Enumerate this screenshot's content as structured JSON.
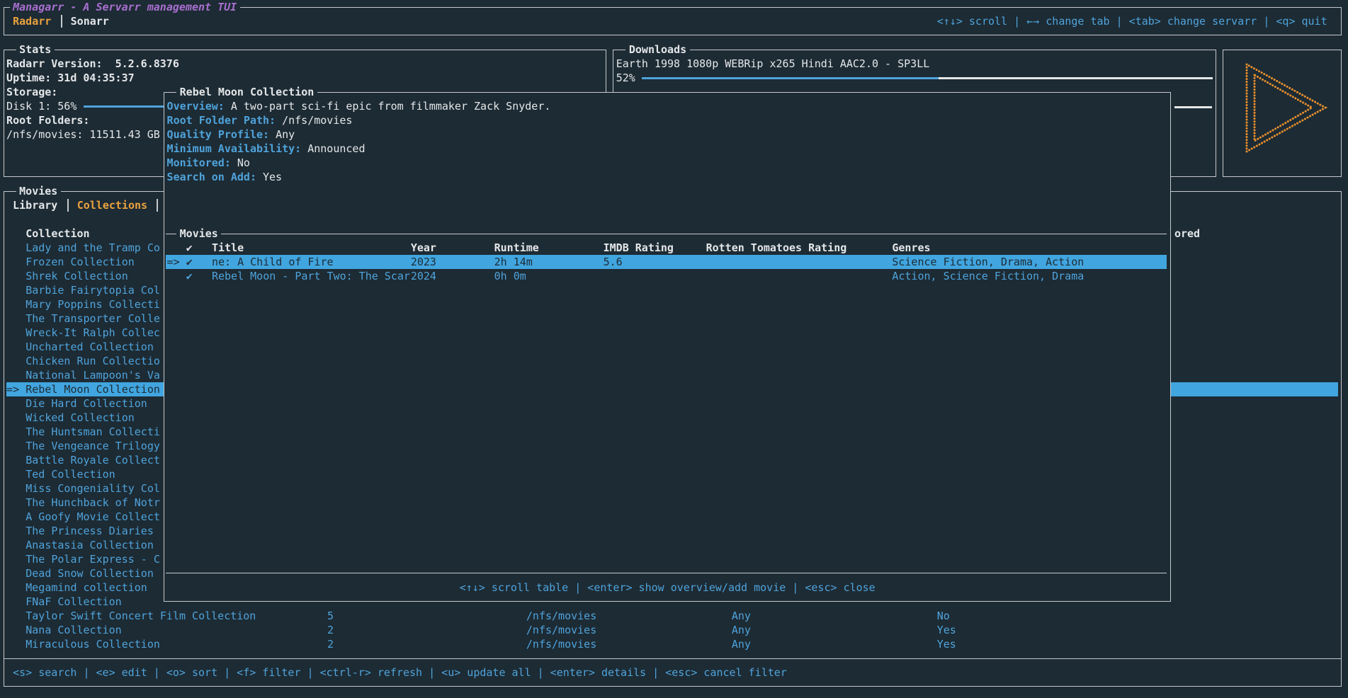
{
  "header": {
    "title": "Managarr - A Servarr management TUI",
    "tabs": [
      "Radarr",
      "Sonarr"
    ],
    "active_tab": 0,
    "help": "<↑↓> scroll | ←→ change tab | <tab> change servarr | <q> quit"
  },
  "stats": {
    "title": "Stats",
    "version_label": "Radarr Version:",
    "version": "5.2.6.8376",
    "uptime_label": "Uptime:",
    "uptime": "31d 04:35:37",
    "storage_label": "Storage:",
    "disk_label": "Disk 1:",
    "disk_percent_label": "56%",
    "disk_percent": 56,
    "root_folders_label": "Root Folders:",
    "root_folders": "/nfs/movies: 11511.43 GB"
  },
  "downloads": {
    "title": "Downloads",
    "items": [
      {
        "name": "Earth 1998 1080p WEBRip x265 Hindi AAC2.0 - SP3LL",
        "progress_label": "52%",
        "progress": 52
      }
    ]
  },
  "movies": {
    "title": "Movies",
    "tabs": [
      "Library",
      "Collections"
    ],
    "active_tab": 1,
    "columns": [
      "Collection",
      "ored"
    ],
    "cursor": "=>",
    "rows": [
      {
        "name": "Lady and the Tramp Co"
      },
      {
        "name": "Frozen Collection"
      },
      {
        "name": "Shrek Collection"
      },
      {
        "name": "Barbie Fairytopia Col"
      },
      {
        "name": "Mary Poppins Collecti"
      },
      {
        "name": "The Transporter Colle"
      },
      {
        "name": "Wreck-It Ralph Collec"
      },
      {
        "name": "Uncharted Collection"
      },
      {
        "name": "Chicken Run Collectio"
      },
      {
        "name": "National Lampoon's Va"
      },
      {
        "name": "Rebel Moon Collection",
        "selected": true
      },
      {
        "name": "Die Hard Collection"
      },
      {
        "name": "Wicked Collection"
      },
      {
        "name": "The Huntsman Collecti"
      },
      {
        "name": "The Vengeance Trilogy"
      },
      {
        "name": "Battle Royale Collect"
      },
      {
        "name": "Ted Collection"
      },
      {
        "name": "Miss Congeniality Col"
      },
      {
        "name": "The Hunchback of Notr"
      },
      {
        "name": "A Goofy Movie Collect"
      },
      {
        "name": "The Princess Diaries"
      },
      {
        "name": "Anastasia Collection"
      },
      {
        "name": "The Polar Express - C"
      },
      {
        "name": "Dead Snow Collection"
      },
      {
        "name": "Megamind collection"
      },
      {
        "name": "FNaF Collection"
      },
      {
        "name": "Taylor Swift Concert Film Collection",
        "movies": 5,
        "root_folder": "/nfs/movies",
        "quality_profile": "Any",
        "search_on_add": "No"
      },
      {
        "name": "Nana Collection",
        "movies": 2,
        "root_folder": "/nfs/movies",
        "quality_profile": "Any",
        "search_on_add": "Yes"
      },
      {
        "name": "Miraculous Collection",
        "movies": 2,
        "root_folder": "/nfs/movies",
        "quality_profile": "Any",
        "search_on_add": "Yes"
      }
    ],
    "help": "<s> search | <e> edit | <o> sort | <f> filter | <ctrl-r> refresh | <u> update all | <enter> details | <esc> cancel filter"
  },
  "popup": {
    "title": "Rebel Moon Collection",
    "fields": [
      {
        "label": "Overview:",
        "value": "A two-part sci-fi epic from filmmaker Zack Snyder."
      },
      {
        "label": "Root Folder Path:",
        "value": "/nfs/movies"
      },
      {
        "label": "Quality Profile:",
        "value": "Any"
      },
      {
        "label": "Minimum Availability:",
        "value": "Announced"
      },
      {
        "label": "Monitored:",
        "value": "No"
      },
      {
        "label": "Search on Add:",
        "value": "Yes"
      }
    ],
    "table": {
      "title": "Movies",
      "cursor": "=>",
      "columns": [
        "✔",
        "Title",
        "Year",
        "Runtime",
        "IMDB Rating",
        "Rotten Tomatoes Rating",
        "Genres"
      ],
      "rows": [
        {
          "monitored": "✔",
          "title": "ne: A Child of Fire",
          "year": 2023,
          "runtime": "2h 14m",
          "imdb_rating": 5.6,
          "genres": "Science Fiction, Drama, Action",
          "selected": true
        },
        {
          "monitored": "✔",
          "title": "Rebel Moon - Part Two: The Scar",
          "year": 2024,
          "runtime": "0h 0m",
          "genres": "Action, Science Fiction, Drama"
        }
      ]
    },
    "help": "<↑↓> scroll table | <enter> show overview/add movie | <esc> close"
  }
}
